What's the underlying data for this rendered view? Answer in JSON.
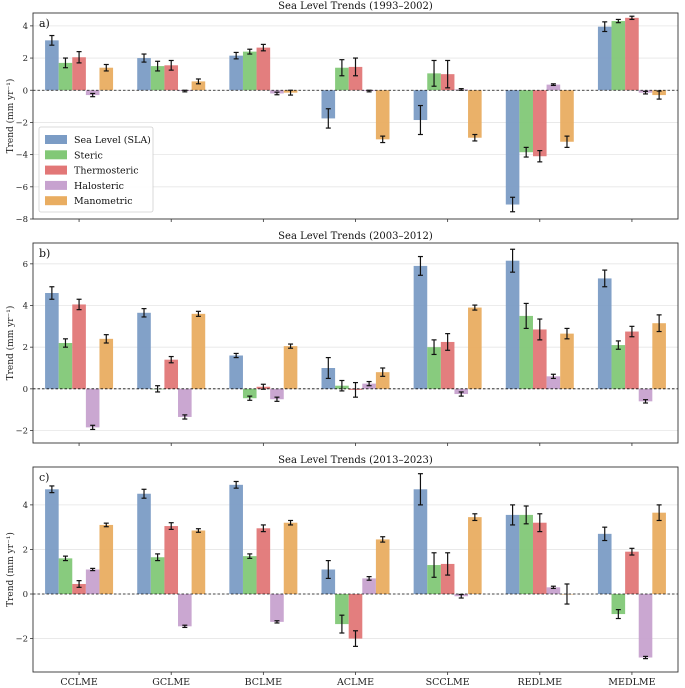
{
  "chart_data": {
    "type": "bar",
    "categories": [
      "CCLME",
      "GCLME",
      "BCLME",
      "ACLME",
      "SCCLME",
      "REDLME",
      "MEDLME"
    ],
    "legend": {
      "placement": "middle-left of panel a",
      "entries": [
        {
          "name": "Sea Level (SLA)",
          "color": "#7b9cc5"
        },
        {
          "name": "Steric",
          "color": "#82c877"
        },
        {
          "name": "Thermosteric",
          "color": "#e27777"
        },
        {
          "name": "Halosteric",
          "color": "#c7a2cf"
        },
        {
          "name": "Manometric",
          "color": "#e9ad61"
        }
      ]
    },
    "panels": [
      {
        "label": "a)",
        "title": "Sea Level Trends (1993–2002)",
        "ylabel": "Trend (mm yr⁻¹)",
        "ylim": [
          -8,
          4.8
        ],
        "yticks": [
          -8,
          -6,
          -4,
          -2,
          0,
          2,
          4
        ],
        "series": [
          {
            "name": "Sea Level (SLA)",
            "values": [
              3.1,
              2.0,
              2.15,
              -1.75,
              -1.85,
              -7.1,
              3.95
            ],
            "errors": [
              0.3,
              0.25,
              0.2,
              0.6,
              0.9,
              0.45,
              0.3
            ]
          },
          {
            "name": "Steric",
            "values": [
              1.7,
              1.5,
              2.4,
              1.4,
              1.05,
              -3.85,
              4.3
            ],
            "errors": [
              0.3,
              0.3,
              0.15,
              0.5,
              0.8,
              0.3,
              0.1
            ]
          },
          {
            "name": "Thermosteric",
            "values": [
              2.05,
              1.55,
              2.65,
              1.45,
              1.0,
              -4.1,
              4.5
            ],
            "errors": [
              0.35,
              0.3,
              0.2,
              0.55,
              0.85,
              0.35,
              0.1
            ]
          },
          {
            "name": "Halosteric",
            "values": [
              -0.3,
              -0.05,
              -0.2,
              -0.05,
              0.05,
              0.35,
              -0.15
            ],
            "errors": [
              0.1,
              0.05,
              0.08,
              0.05,
              0.05,
              0.05,
              0.08
            ]
          },
          {
            "name": "Manometric",
            "values": [
              1.4,
              0.55,
              -0.15,
              -3.05,
              -2.95,
              -3.2,
              -0.3
            ],
            "errors": [
              0.2,
              0.15,
              0.15,
              0.2,
              0.2,
              0.35,
              0.25
            ]
          }
        ]
      },
      {
        "label": "b)",
        "title": "Sea Level Trends (2003–2012)",
        "ylabel": "Trend (mm yr⁻¹)",
        "ylim": [
          -2.6,
          7.0
        ],
        "yticks": [
          -2,
          0,
          2,
          4,
          6
        ],
        "series": [
          {
            "name": "Sea Level (SLA)",
            "values": [
              4.6,
              3.65,
              1.6,
              1.0,
              5.9,
              6.15,
              5.3
            ],
            "errors": [
              0.3,
              0.2,
              0.1,
              0.5,
              0.45,
              0.55,
              0.4
            ]
          },
          {
            "name": "Steric",
            "values": [
              2.2,
              0.0,
              -0.45,
              0.15,
              2.0,
              3.5,
              2.1
            ],
            "errors": [
              0.2,
              0.15,
              0.1,
              0.25,
              0.35,
              0.6,
              0.2
            ]
          },
          {
            "name": "Thermosteric",
            "values": [
              4.05,
              1.4,
              0.1,
              -0.05,
              2.25,
              2.85,
              2.75
            ],
            "errors": [
              0.25,
              0.15,
              0.12,
              0.35,
              0.4,
              0.5,
              0.25
            ]
          },
          {
            "name": "Halosteric",
            "values": [
              -1.85,
              -1.35,
              -0.5,
              0.25,
              -0.25,
              0.6,
              -0.6
            ],
            "errors": [
              0.1,
              0.1,
              0.1,
              0.1,
              0.1,
              0.1,
              0.08
            ]
          },
          {
            "name": "Manometric",
            "values": [
              2.4,
              3.6,
              2.05,
              0.8,
              3.9,
              2.65,
              3.15
            ],
            "errors": [
              0.2,
              0.12,
              0.1,
              0.2,
              0.12,
              0.25,
              0.4
            ]
          }
        ]
      },
      {
        "label": "c)",
        "title": "Sea Level Trends (2013–2023)",
        "ylabel": "Trend (mm yr⁻¹)",
        "ylim": [
          -3.5,
          5.7
        ],
        "yticks": [
          -2,
          0,
          2,
          4
        ],
        "series": [
          {
            "name": "Sea Level (SLA)",
            "values": [
              4.7,
              4.5,
              4.9,
              1.1,
              4.7,
              3.55,
              2.7
            ],
            "errors": [
              0.15,
              0.2,
              0.15,
              0.4,
              0.7,
              0.45,
              0.3
            ]
          },
          {
            "name": "Steric",
            "values": [
              1.6,
              1.65,
              1.7,
              -1.35,
              1.3,
              3.55,
              -0.9
            ],
            "errors": [
              0.1,
              0.15,
              0.1,
              0.4,
              0.55,
              0.4,
              0.2
            ]
          },
          {
            "name": "Thermosteric",
            "values": [
              0.45,
              3.05,
              2.95,
              -2.0,
              1.35,
              3.2,
              1.9
            ],
            "errors": [
              0.15,
              0.15,
              0.15,
              0.35,
              0.5,
              0.4,
              0.15
            ]
          },
          {
            "name": "Halosteric",
            "values": [
              1.1,
              -1.45,
              -1.25,
              0.7,
              -0.1,
              0.3,
              -2.85
            ],
            "errors": [
              0.05,
              0.05,
              0.05,
              0.08,
              0.08,
              0.05,
              0.05
            ]
          },
          {
            "name": "Manometric",
            "values": [
              3.1,
              2.85,
              3.2,
              2.45,
              3.45,
              0.0,
              3.65
            ],
            "errors": [
              0.08,
              0.08,
              0.1,
              0.12,
              0.15,
              0.45,
              0.35
            ]
          }
        ]
      }
    ]
  }
}
